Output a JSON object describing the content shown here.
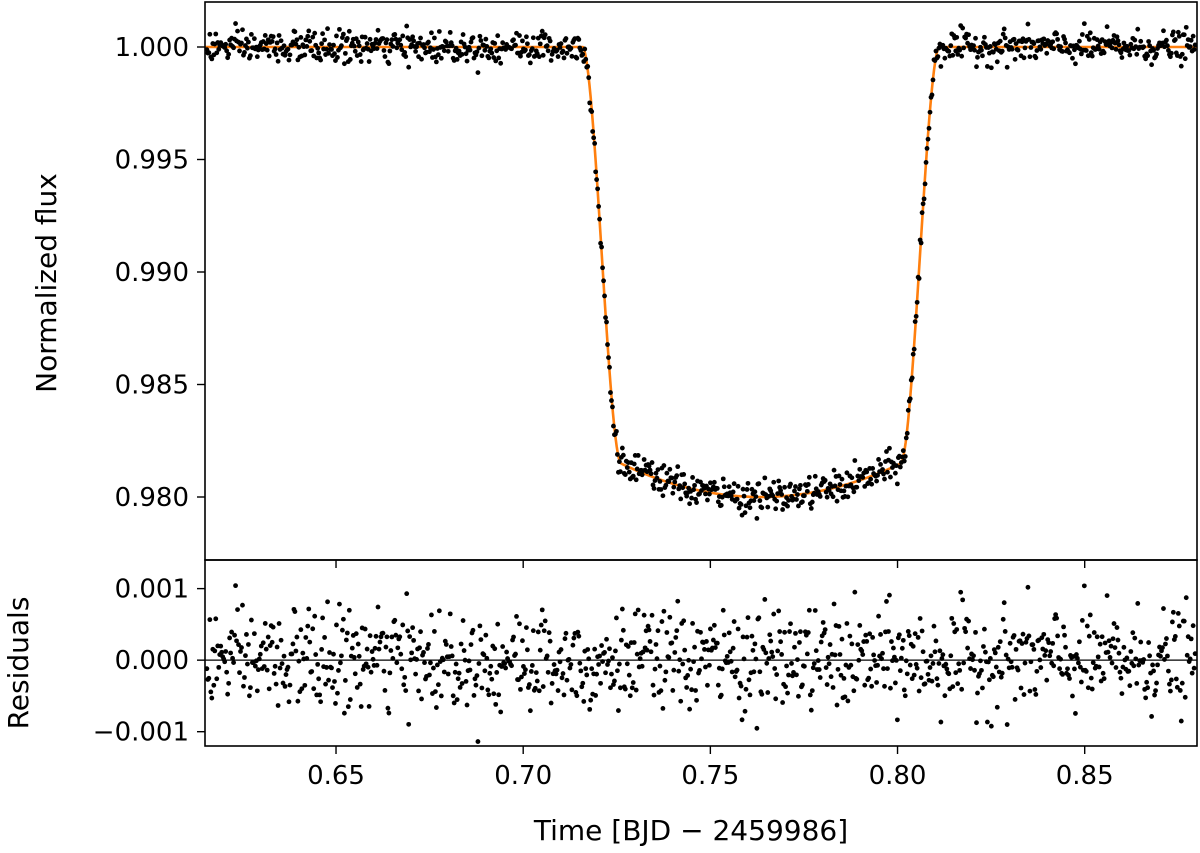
{
  "chart_data": [
    {
      "type": "scatter",
      "panel": "main",
      "xlabel": "",
      "ylabel": "Normalized flux",
      "xlim": [
        0.615,
        0.88
      ],
      "ylim": [
        0.9772,
        1.002
      ],
      "xticks": [
        0.65,
        0.7,
        0.75,
        0.8,
        0.85
      ],
      "yticks": [
        0.98,
        0.985,
        0.99,
        0.995,
        1.0
      ],
      "ytick_labels": [
        "0.980",
        "0.985",
        "0.990",
        "0.995",
        "1.000"
      ],
      "grid": false,
      "series": [
        {
          "kind": "points",
          "color": "#000000",
          "values": "observed flux (≈1000 points; see script-generated marks)"
        },
        {
          "kind": "line",
          "color": "#ff7f0e"
        }
      ],
      "model": {
        "baseline": 1.0,
        "t1": 0.716,
        "t2": 0.726,
        "t3": 0.801,
        "t4": 0.811,
        "t_mid": 0.7635,
        "depth_center": 0.98,
        "depth_at_t2_t3": 0.9815
      },
      "noise_sigma": 0.00035
    },
    {
      "type": "scatter",
      "panel": "residuals",
      "xlabel": "Time [BJD − 2459986]",
      "ylabel": "Residuals",
      "xlim": [
        0.615,
        0.88
      ],
      "ylim": [
        -0.0012,
        0.0014
      ],
      "xticks": [
        0.65,
        0.7,
        0.75,
        0.8,
        0.85
      ],
      "xtick_labels": [
        "0.65",
        "0.70",
        "0.75",
        "0.80",
        "0.85"
      ],
      "yticks": [
        -0.001,
        0.0,
        0.001
      ],
      "ytick_labels": [
        "−0.001",
        "0.000",
        "0.001"
      ],
      "zero_line": 0,
      "grid": false,
      "series": [
        {
          "kind": "points",
          "color": "#000000"
        }
      ]
    }
  ]
}
